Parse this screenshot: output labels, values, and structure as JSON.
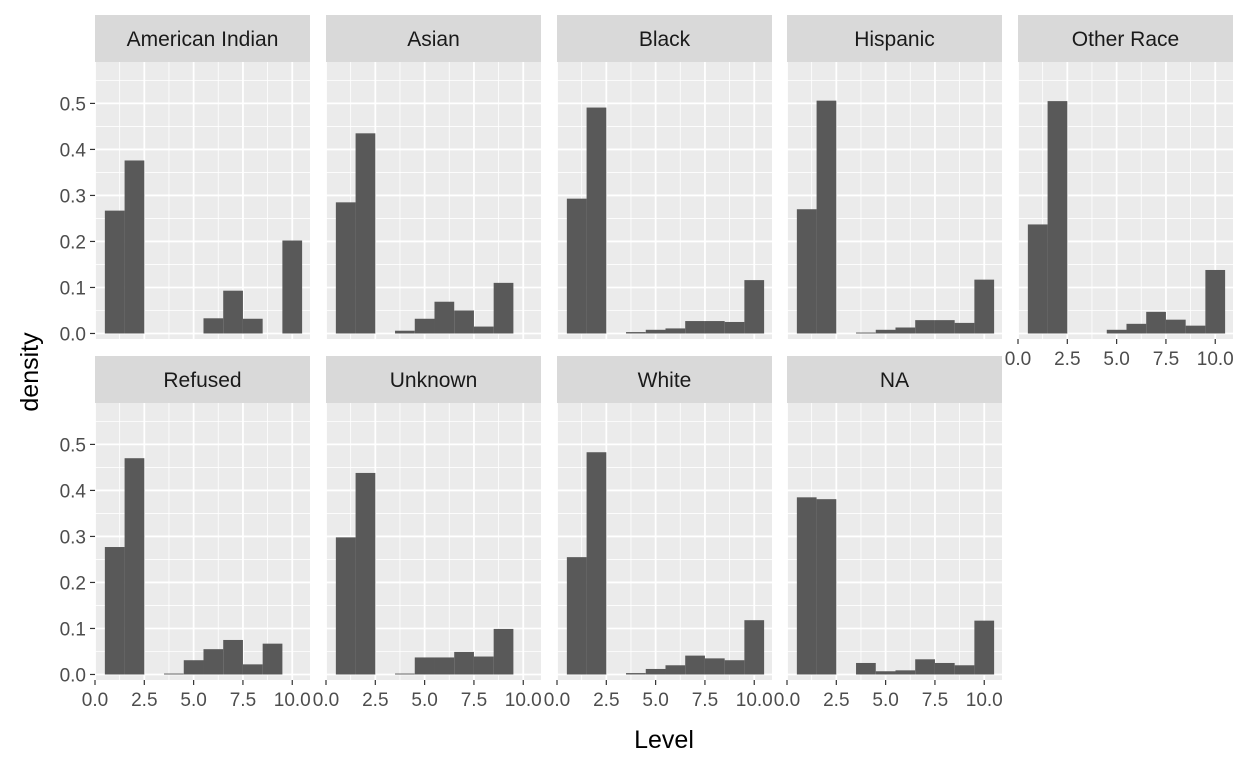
{
  "chart_data": {
    "type": "bar",
    "subtype": "faceted-histogram",
    "xlabel": "Level",
    "ylabel": "density",
    "xlim": [
      0,
      10.9
    ],
    "ylim": [
      -0.012,
      0.59
    ],
    "x_ticks": [
      "0.0",
      "2.5",
      "5.0",
      "7.5",
      "10.0"
    ],
    "y_ticks": [
      "0.0",
      "0.1",
      "0.2",
      "0.3",
      "0.4",
      "0.5"
    ],
    "bin_width": 1,
    "bin_centers": [
      1,
      2,
      3,
      4,
      5,
      6,
      7,
      8,
      9,
      10
    ],
    "grid": true,
    "colors": {
      "bar": "#595959",
      "panel_bg": "#ebebeb",
      "strip_bg": "#d9d9d9",
      "grid": "#ffffff"
    },
    "facets": [
      {
        "name": "American Indian",
        "values": [
          0.267,
          0.376,
          0,
          0,
          0,
          0.033,
          0.093,
          0.032,
          0,
          0.202
        ]
      },
      {
        "name": "Asian",
        "values": [
          0.285,
          0.435,
          0,
          0.006,
          0.032,
          0.069,
          0.05,
          0.015,
          0.11,
          0
        ]
      },
      {
        "name": "Black",
        "values": [
          0.293,
          0.491,
          0,
          0.003,
          0.008,
          0.011,
          0.027,
          0.027,
          0.025,
          0.116
        ]
      },
      {
        "name": "Hispanic",
        "values": [
          0.27,
          0.506,
          0,
          0.002,
          0.008,
          0.013,
          0.029,
          0.029,
          0.023,
          0.117
        ]
      },
      {
        "name": "Other Race",
        "values": [
          0.237,
          0.505,
          0,
          0,
          0.008,
          0.021,
          0.047,
          0.03,
          0.017,
          0.138
        ]
      },
      {
        "name": "Refused",
        "values": [
          0.277,
          0.47,
          0,
          0.002,
          0.031,
          0.055,
          0.075,
          0.022,
          0.067,
          0
        ]
      },
      {
        "name": "Unknown",
        "values": [
          0.298,
          0.438,
          0,
          0.002,
          0.037,
          0.037,
          0.049,
          0.039,
          0.099,
          0
        ]
      },
      {
        "name": "White",
        "values": [
          0.255,
          0.483,
          0,
          0.003,
          0.012,
          0.02,
          0.041,
          0.035,
          0.031,
          0.118
        ]
      },
      {
        "name": "NA",
        "values": [
          0.385,
          0.381,
          0,
          0.025,
          0.007,
          0.009,
          0.033,
          0.025,
          0.02,
          0.117
        ]
      }
    ]
  }
}
